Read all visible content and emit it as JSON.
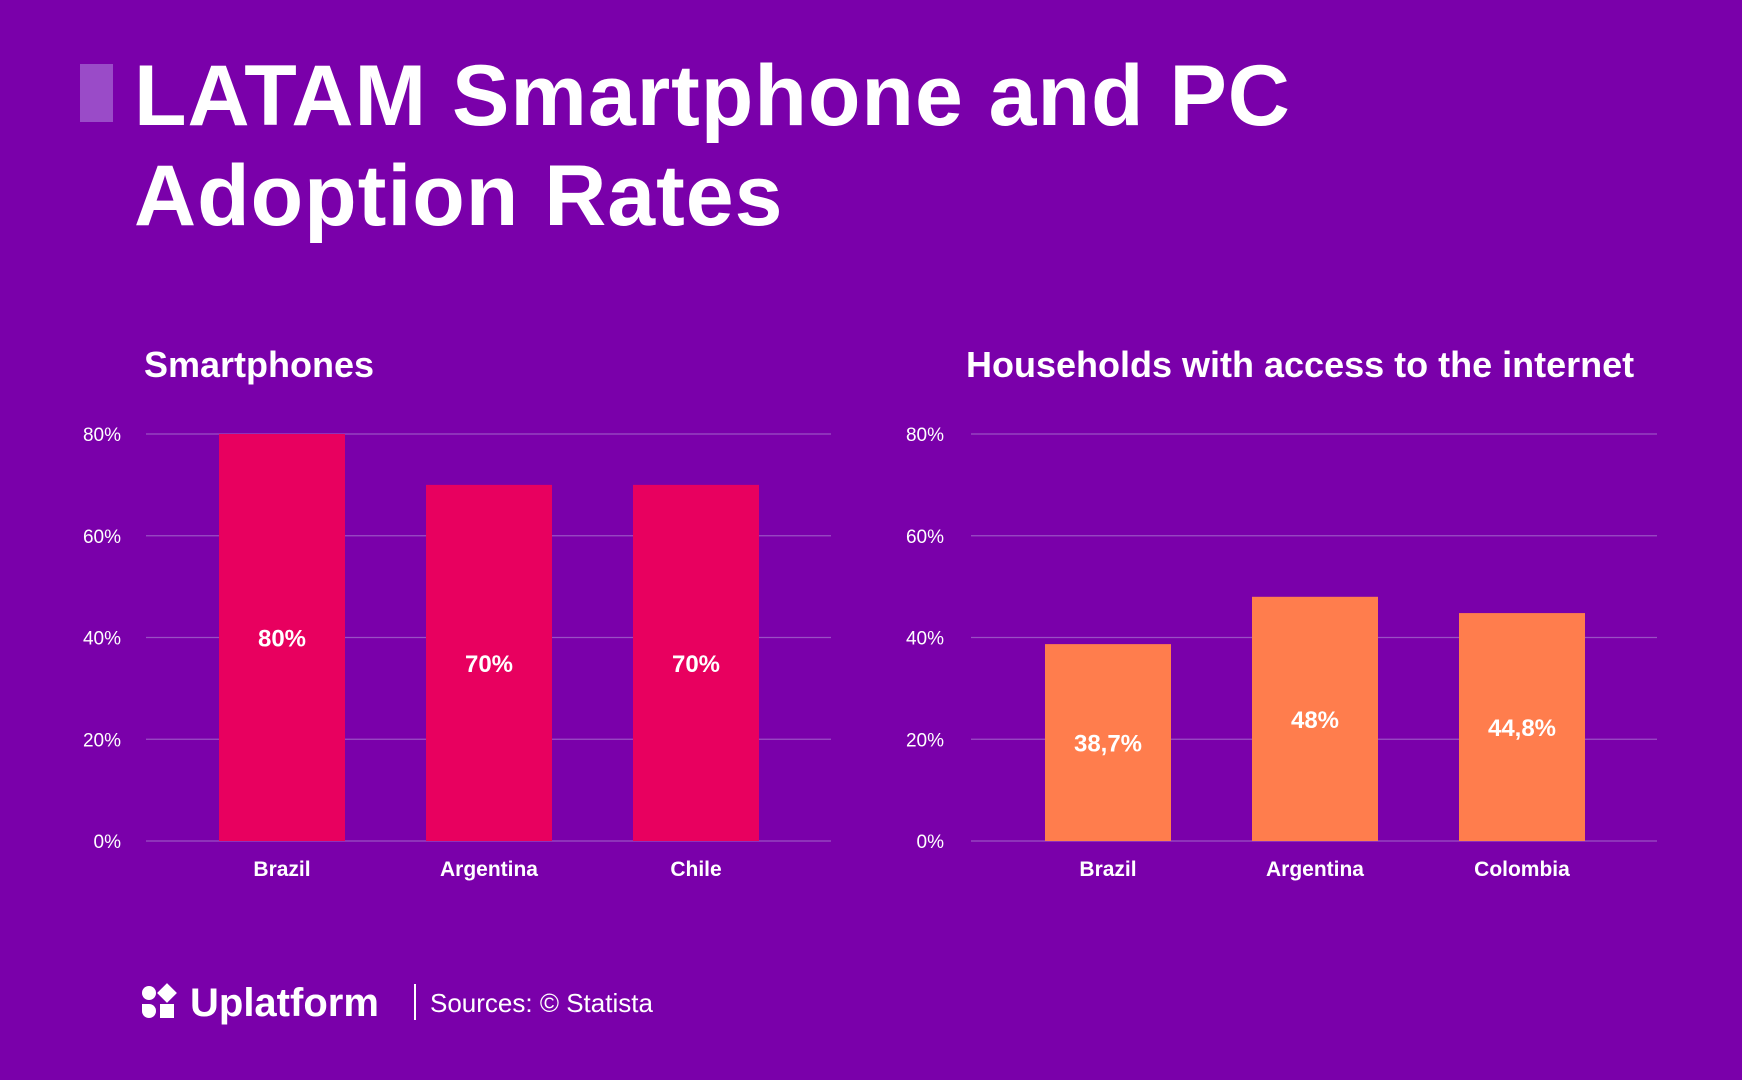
{
  "title": {
    "line1": "LATAM Smartphone and PC",
    "line2": "Adoption Rates"
  },
  "footer": {
    "brand": "Uplatform",
    "sources": "Sources: © Statista"
  },
  "colors": {
    "background": "#7a00aa",
    "smartphones_bar": "#e8005f",
    "internet_bar": "#ff7d4d",
    "gridline": "#9a4fc4",
    "text": "#ffffff"
  },
  "chart_data": [
    {
      "type": "bar",
      "title": "Smartphones",
      "categories": [
        "Brazil",
        "Argentina",
        "Chile"
      ],
      "values": [
        80,
        70,
        70
      ],
      "value_labels": [
        "80%",
        "70%",
        "70%"
      ],
      "ylim": [
        0,
        80
      ],
      "yticks": [
        "0%",
        "20%",
        "40%",
        "60%",
        "80%"
      ],
      "xlabel": "",
      "ylabel": "",
      "grid": true,
      "color": "#e8005f"
    },
    {
      "type": "bar",
      "title": "Households with access to the internet",
      "categories": [
        "Brazil",
        "Argentina",
        "Colombia"
      ],
      "values": [
        38.7,
        48,
        44.8
      ],
      "value_labels": [
        "38,7%",
        "48%",
        "44,8%"
      ],
      "ylim": [
        0,
        80
      ],
      "yticks": [
        "0%",
        "20%",
        "40%",
        "60%",
        "80%"
      ],
      "xlabel": "",
      "ylabel": "",
      "grid": true,
      "color": "#ff7d4d"
    }
  ]
}
